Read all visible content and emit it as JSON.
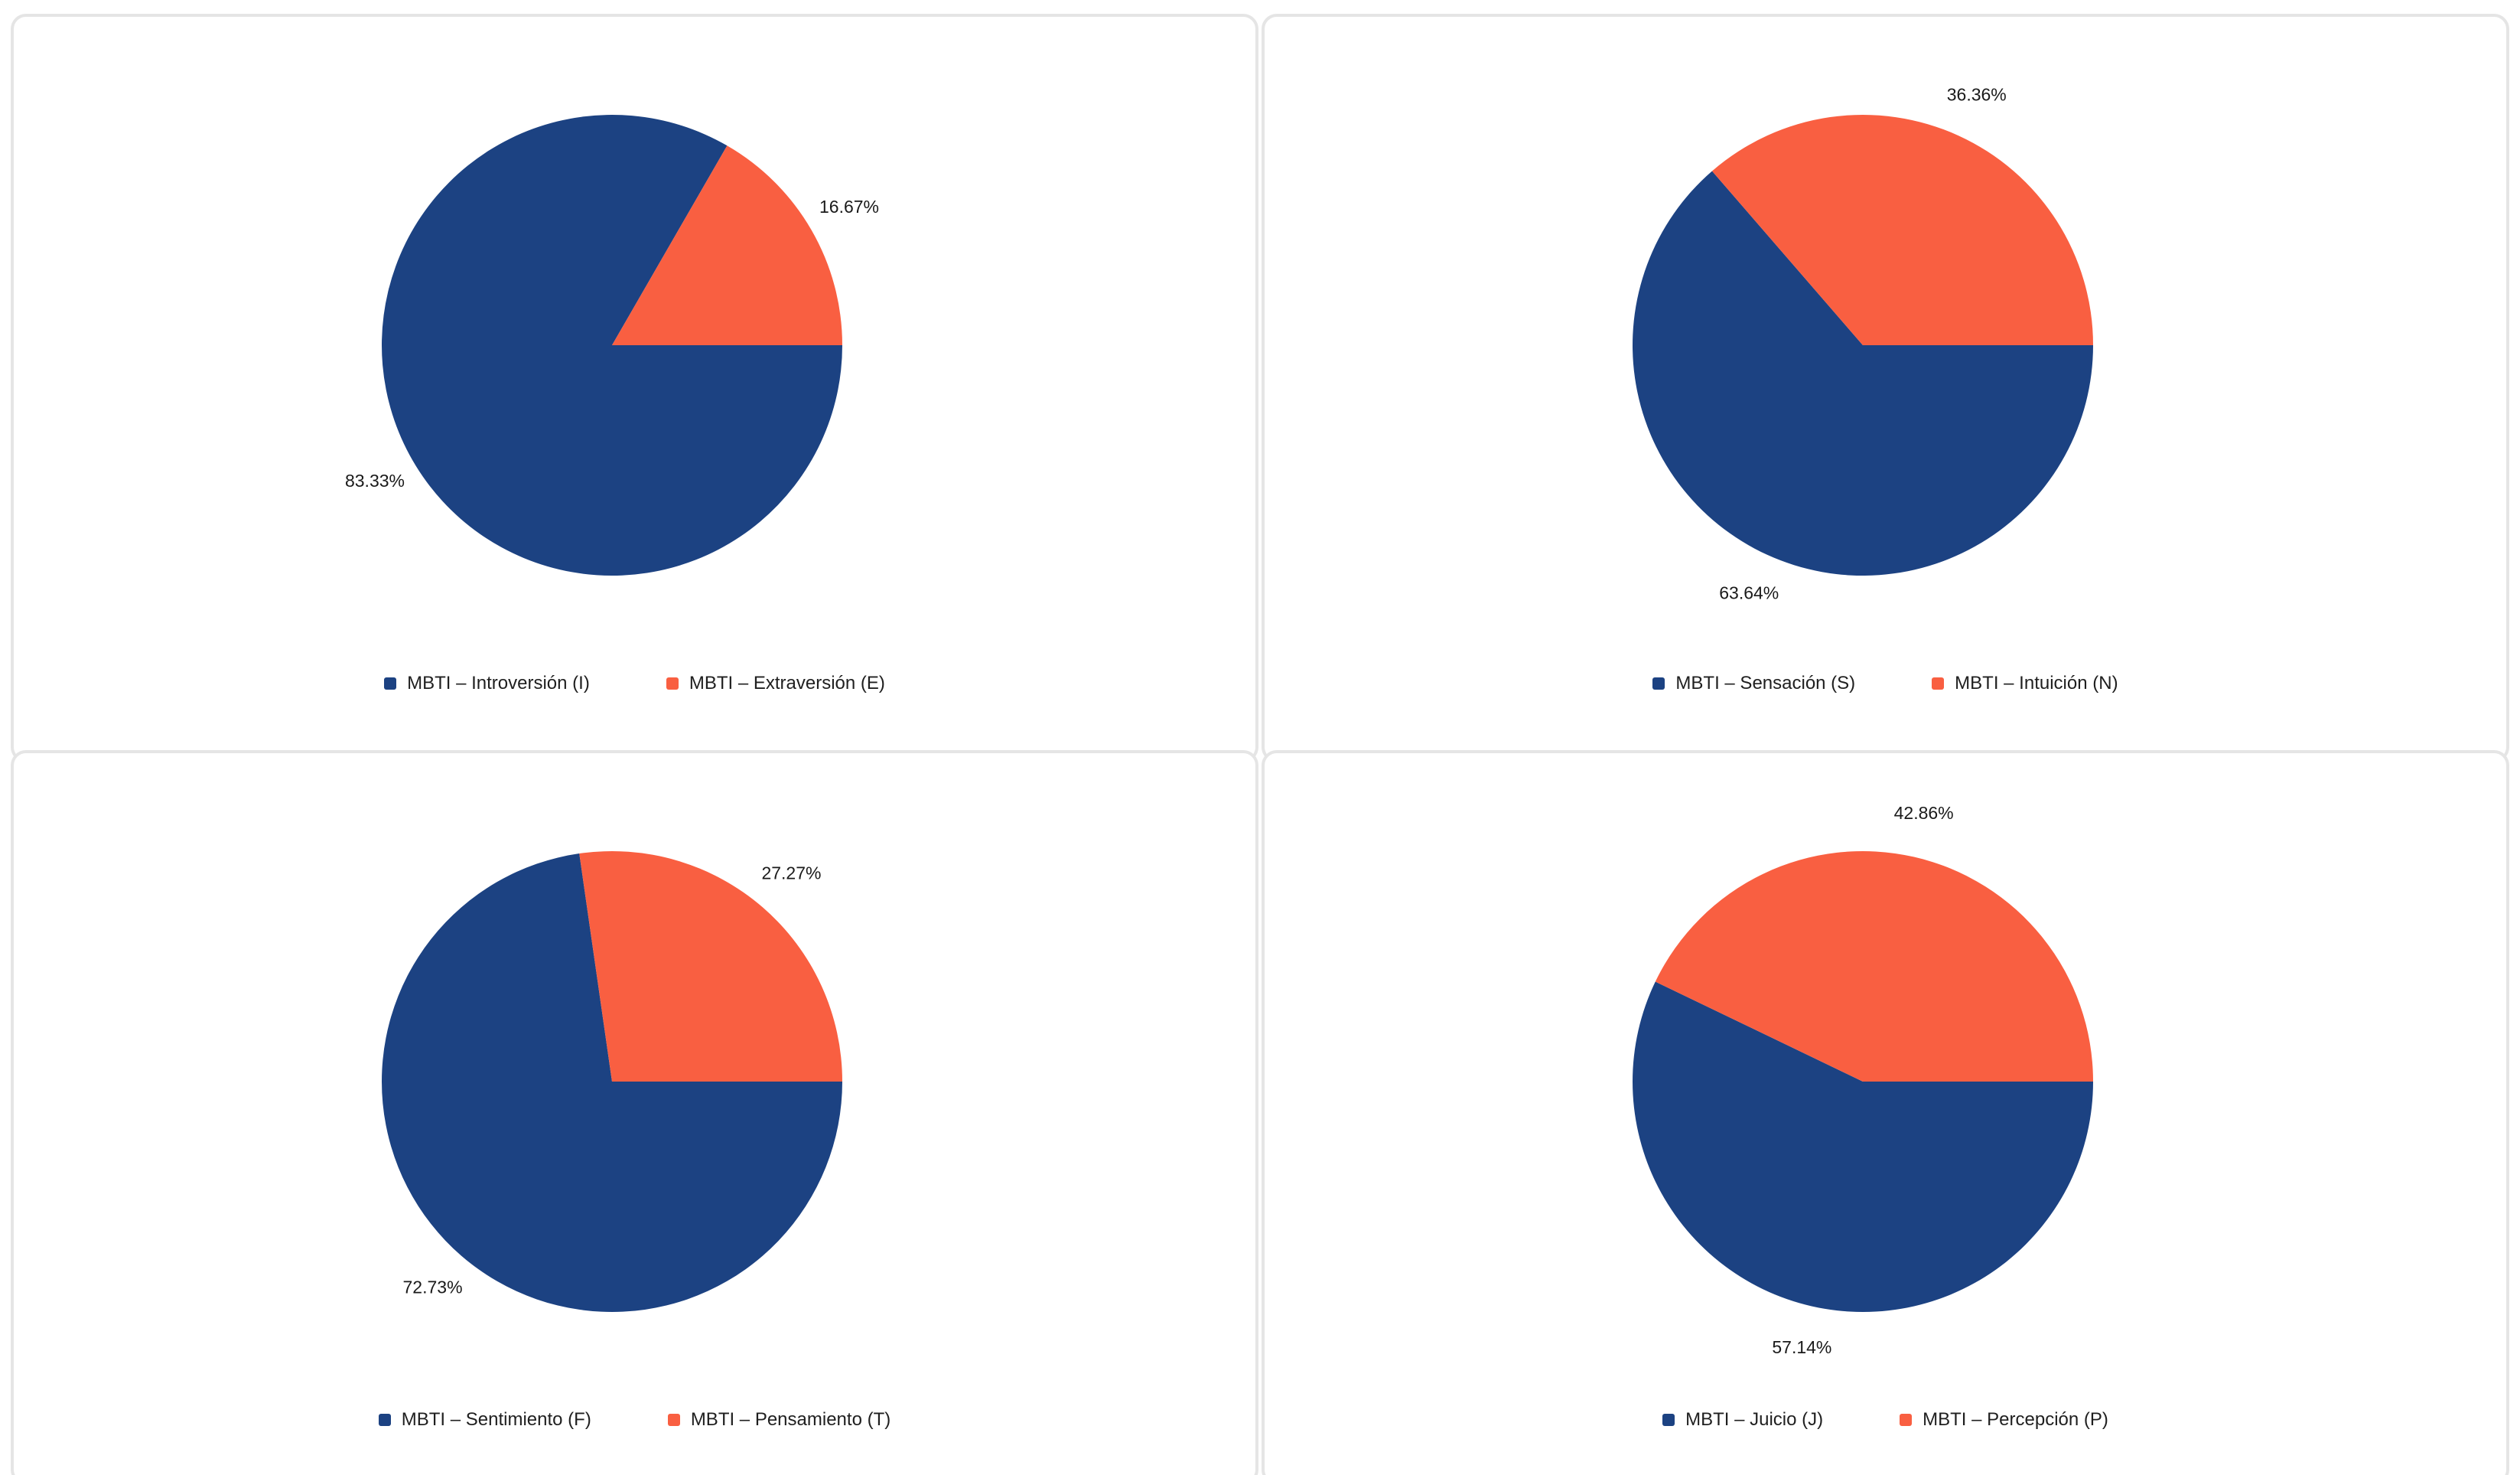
{
  "colors": {
    "primary": "#1c4282",
    "secondary": "#f95f41"
  },
  "chart_data": [
    {
      "type": "pie",
      "title": "",
      "categories": [
        "MBTI – Introversión (I)",
        "MBTI – Extraversión (E)"
      ],
      "values": [
        83.33,
        16.67
      ],
      "labels": [
        "83.33%",
        "16.67%"
      ],
      "legend": "bottom"
    },
    {
      "type": "pie",
      "title": "",
      "categories": [
        "MBTI – Sensación (S)",
        "MBTI – Intuición (N)"
      ],
      "values": [
        63.64,
        36.36
      ],
      "labels": [
        "63.64%",
        "36.36%"
      ],
      "legend": "bottom"
    },
    {
      "type": "pie",
      "title": "",
      "categories": [
        "MBTI – Sentimiento (F)",
        "MBTI – Pensamiento (T)"
      ],
      "values": [
        72.73,
        27.27
      ],
      "labels": [
        "72.73%",
        "27.27%"
      ],
      "legend": "bottom"
    },
    {
      "type": "pie",
      "title": "",
      "categories": [
        "MBTI – Juicio (J)",
        "MBTI – Percepción (P)"
      ],
      "values": [
        57.14,
        42.86
      ],
      "labels": [
        "57.14%",
        "42.86%"
      ],
      "legend": "bottom"
    }
  ]
}
